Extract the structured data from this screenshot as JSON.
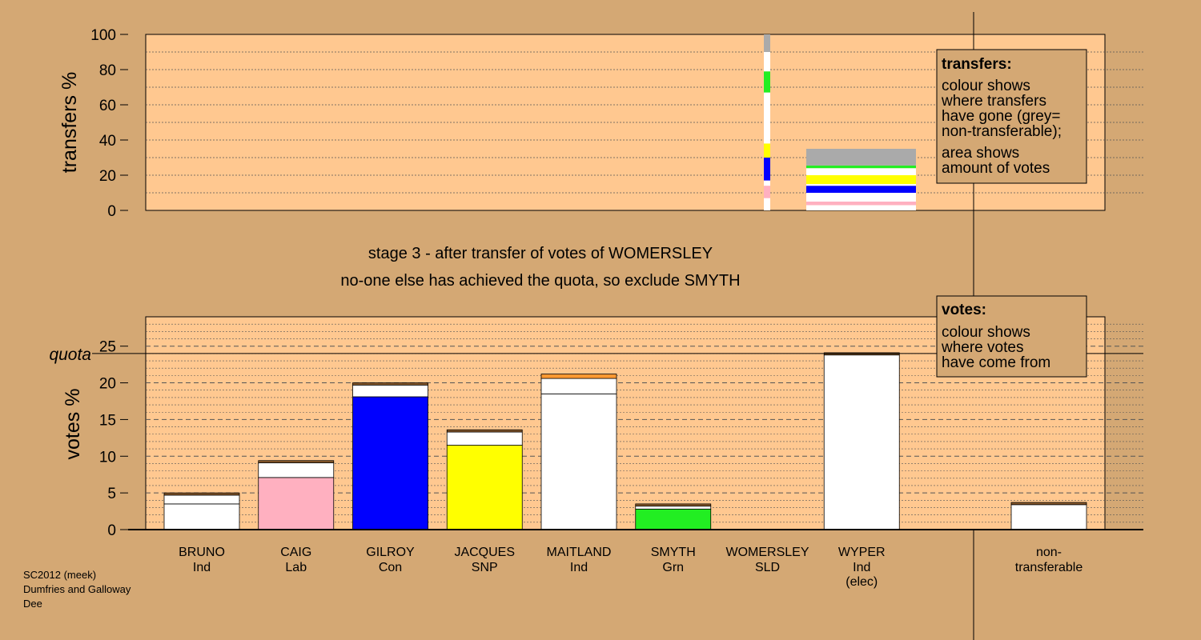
{
  "chart_data": [
    {
      "type": "bar",
      "ylabel": "transfers %",
      "ylim": [
        0,
        100
      ],
      "yticks": [
        0,
        20,
        40,
        60,
        80,
        100
      ],
      "grid": true,
      "colors": {
        "white": "#ffffff",
        "pink": "#ffb0c0",
        "blue": "#0000ff",
        "yellow": "#ffff00",
        "green": "#22ee22",
        "grey": "#aaaaaa"
      },
      "transfer_strip": {
        "label": "WOMERSLEY",
        "segments": [
          {
            "to": "BRUNO",
            "color": "white",
            "value": 7
          },
          {
            "to": "CAIG",
            "color": "pink",
            "value": 7
          },
          {
            "to": "WHITE",
            "color": "white",
            "value": 3
          },
          {
            "to": "GILROY",
            "color": "blue",
            "value": 13
          },
          {
            "to": "JACQUES",
            "color": "yellow",
            "value": 8
          },
          {
            "to": "MAITLAND",
            "color": "white",
            "value": 29
          },
          {
            "to": "SMYTH",
            "color": "green",
            "value": 12
          },
          {
            "to": "WYPER",
            "color": "white",
            "value": 11
          },
          {
            "to": "non-transferable",
            "color": "grey",
            "value": 10
          }
        ]
      },
      "transfer_block": {
        "segments": [
          {
            "color": "white",
            "value": 3
          },
          {
            "color": "pink",
            "value": 2
          },
          {
            "color": "white",
            "value": 5
          },
          {
            "color": "blue",
            "value": 4
          },
          {
            "color": "white",
            "value": 1
          },
          {
            "color": "yellow",
            "value": 5
          },
          {
            "color": "white",
            "value": 4
          },
          {
            "color": "green",
            "value": 1.5
          },
          {
            "color": "grey",
            "value": 9.5
          }
        ]
      },
      "legend": {
        "placement": "top-right",
        "title": "transfers:",
        "lines": [
          "colour shows",
          "where transfers",
          "have gone (grey=",
          "non-transferable);"
        ],
        "lines2": [
          "area shows",
          "amount of votes"
        ]
      }
    },
    {
      "type": "bar",
      "ylabel": "votes %",
      "ylim": [
        0,
        29
      ],
      "yticks": [
        0,
        5,
        10,
        15,
        20,
        25
      ],
      "quota": 24,
      "quota_label": "quota",
      "grid": true,
      "categories": [
        "BRUNO",
        "CAIG",
        "GILROY",
        "JACQUES",
        "MAITLAND",
        "SMYTH",
        "WOMERSLEY",
        "WYPER",
        "non-transferable"
      ],
      "candidates": [
        {
          "name": "BRUNO",
          "party": "Ind",
          "segments": [
            {
              "color": "white",
              "value": 3.5
            },
            {
              "color": "white",
              "value": 1.2
            },
            {
              "color": "brown",
              "value": 0.3
            }
          ]
        },
        {
          "name": "CAIG",
          "party": "Lab",
          "segments": [
            {
              "color": "pink",
              "value": 7.1
            },
            {
              "color": "white",
              "value": 2.0
            },
            {
              "color": "brown",
              "value": 0.3
            }
          ]
        },
        {
          "name": "GILROY",
          "party": "Con",
          "segments": [
            {
              "color": "blue",
              "value": 18.1
            },
            {
              "color": "white",
              "value": 1.6
            },
            {
              "color": "brown",
              "value": 0.3
            }
          ]
        },
        {
          "name": "JACQUES",
          "party": "SNP",
          "segments": [
            {
              "color": "yellow",
              "value": 11.5
            },
            {
              "color": "white",
              "value": 1.8
            },
            {
              "color": "brown",
              "value": 0.3
            }
          ]
        },
        {
          "name": "MAITLAND",
          "party": "Ind",
          "segments": [
            {
              "color": "white",
              "value": 18.5
            },
            {
              "color": "white",
              "value": 2.1
            },
            {
              "color": "orange",
              "value": 0.6
            }
          ]
        },
        {
          "name": "SMYTH",
          "party": "Grn",
          "segments": [
            {
              "color": "green",
              "value": 2.8
            },
            {
              "color": "white",
              "value": 0.4
            },
            {
              "color": "brown",
              "value": 0.3
            }
          ]
        },
        {
          "name": "WOMERSLEY",
          "party": "SLD",
          "segments": []
        },
        {
          "name": "WYPER",
          "party": "Ind",
          "note": "(elec)",
          "segments": [
            {
              "color": "white",
              "value": 23.8
            },
            {
              "color": "brown",
              "value": 0.3
            }
          ]
        },
        {
          "name": "non-",
          "party": "transferable",
          "segments": [
            {
              "color": "white",
              "value": 3.4
            },
            {
              "color": "brown",
              "value": 0.3
            }
          ]
        }
      ],
      "seg_colors": {
        "white": "#ffffff",
        "pink": "#ffb0c0",
        "blue": "#0000ff",
        "yellow": "#ffff00",
        "green": "#22ee22",
        "brown": "#8a5a2b",
        "orange": "#ff9933"
      },
      "legend": {
        "placement": "top-right",
        "title": "votes:",
        "lines": [
          "colour shows",
          "where votes",
          "have come from"
        ]
      }
    }
  ],
  "titles": {
    "line1": "stage 3 - after transfer of votes of WOMERSLEY",
    "line2": "no-one else has achieved the quota, so exclude SMYTH"
  },
  "info": {
    "line1": "SC2012 (meek)",
    "line2": "Dumfries and Galloway",
    "line3": "Dee"
  },
  "colors": {
    "background": "#d4a874",
    "plot_background": "#ffc890"
  }
}
